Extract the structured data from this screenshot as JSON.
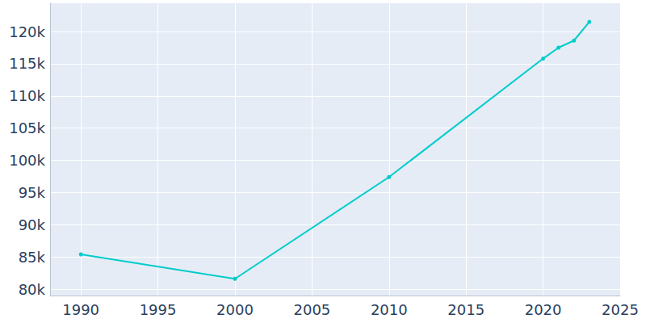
{
  "chart_data": {
    "type": "line",
    "x": [
      1990,
      2000,
      2010,
      2020,
      2021,
      2022,
      2023
    ],
    "values": [
      85400,
      81600,
      97400,
      115800,
      117500,
      118600,
      121500
    ],
    "color": "#00cccc",
    "marker": "circle",
    "xlim": [
      1988,
      2025
    ],
    "xticks": [
      1990,
      1995,
      2000,
      2005,
      2010,
      2015,
      2020,
      2025
    ],
    "ylim": [
      79000,
      124400
    ],
    "yticks": [
      {
        "value": 80000,
        "label": "80k"
      },
      {
        "value": 85000,
        "label": "85k"
      },
      {
        "value": 90000,
        "label": "90k"
      },
      {
        "value": 95000,
        "label": "95k"
      },
      {
        "value": 100000,
        "label": "100k"
      },
      {
        "value": 105000,
        "label": "105k"
      },
      {
        "value": 110000,
        "label": "110k"
      },
      {
        "value": 115000,
        "label": "115k"
      },
      {
        "value": 120000,
        "label": "120k"
      }
    ],
    "grid": true
  }
}
